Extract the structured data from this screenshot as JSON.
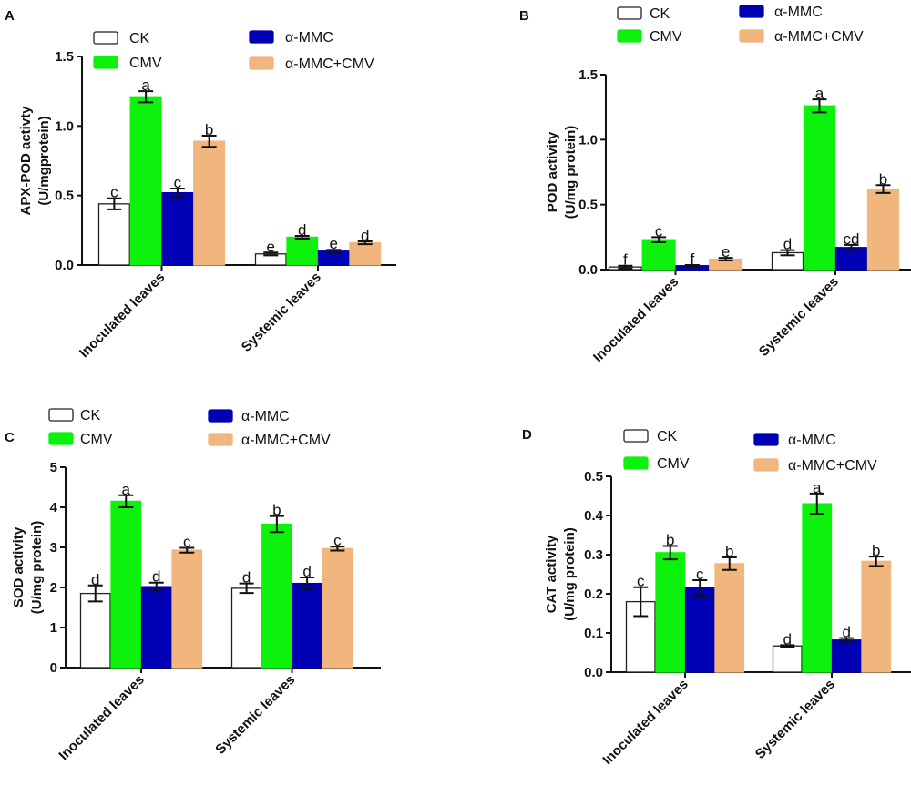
{
  "colors": {
    "CK": "#ffffff",
    "CMV": "#0cf20c",
    "a-MMC": "#0000b4",
    "a-MMC+CMV": "#f1b57e",
    "axis": "#111111"
  },
  "legend": [
    "CK",
    "CMV",
    "α-MMC",
    "α-MMC+CMV"
  ],
  "chart_data": [
    {
      "type": "bar",
      "panel": "A",
      "ylabel": [
        "APX-POD activty",
        "(U/mgprotein)"
      ],
      "ylim": [
        0,
        1.5
      ],
      "yticks": [
        "0.0",
        "0.5",
        "1.0",
        "1.5"
      ],
      "ytick_values": [
        0,
        0.5,
        1.0,
        1.5
      ],
      "categories": [
        "Inoculated leaves",
        "Systemic leaves"
      ],
      "series": [
        {
          "name": "CK",
          "values": [
            0.44,
            0.08
          ],
          "errors": [
            0.04,
            0.01
          ],
          "letters": [
            "c",
            "e"
          ]
        },
        {
          "name": "CMV",
          "values": [
            1.21,
            0.2
          ],
          "errors": [
            0.04,
            0.01
          ],
          "letters": [
            "a",
            "d"
          ]
        },
        {
          "name": "α-MMC",
          "values": [
            0.52,
            0.1
          ],
          "errors": [
            0.03,
            0.01
          ],
          "letters": [
            "c",
            "e"
          ]
        },
        {
          "name": "α-MMC+CMV",
          "values": [
            0.89,
            0.16
          ],
          "errors": [
            0.04,
            0.01
          ],
          "letters": [
            "b",
            "d"
          ]
        }
      ]
    },
    {
      "type": "bar",
      "panel": "B",
      "ylabel": [
        "POD activity",
        "(U/mg protein)"
      ],
      "ylim": [
        0,
        1.5
      ],
      "yticks": [
        "0.0",
        "0.5",
        "1.0",
        "1.5"
      ],
      "ytick_values": [
        0,
        0.5,
        1.0,
        1.5
      ],
      "categories": [
        "Inoculated leaves",
        "Systemic leaves"
      ],
      "series": [
        {
          "name": "CK",
          "values": [
            0.02,
            0.13
          ],
          "errors": [
            0.01,
            0.02
          ],
          "letters": [
            "f",
            "d"
          ]
        },
        {
          "name": "CMV",
          "values": [
            0.23,
            1.26
          ],
          "errors": [
            0.02,
            0.05
          ],
          "letters": [
            "c",
            "a"
          ]
        },
        {
          "name": "α-MMC",
          "values": [
            0.03,
            0.17
          ],
          "errors": [
            0.005,
            0.02
          ],
          "letters": [
            "f",
            "cd"
          ]
        },
        {
          "name": "α-MMC+CMV",
          "values": [
            0.08,
            0.62
          ],
          "errors": [
            0.01,
            0.03
          ],
          "letters": [
            "e",
            "b"
          ]
        }
      ]
    },
    {
      "type": "bar",
      "panel": "C",
      "ylabel": [
        "SOD activity",
        "(U/mg protein)"
      ],
      "ylim": [
        0,
        5
      ],
      "yticks": [
        "0",
        "1",
        "2",
        "3",
        "4",
        "5"
      ],
      "ytick_values": [
        0,
        1,
        2,
        3,
        4,
        5
      ],
      "categories": [
        "Inoculated leaves",
        "Systemic leaves"
      ],
      "series": [
        {
          "name": "CK",
          "values": [
            1.85,
            1.98
          ],
          "errors": [
            0.2,
            0.12
          ],
          "letters": [
            "d",
            "d"
          ]
        },
        {
          "name": "CMV",
          "values": [
            4.15,
            3.58
          ],
          "errors": [
            0.15,
            0.2
          ],
          "letters": [
            "a",
            "b"
          ]
        },
        {
          "name": "α-MMC",
          "values": [
            2.02,
            2.1
          ],
          "errors": [
            0.1,
            0.15
          ],
          "letters": [
            "d",
            "d"
          ]
        },
        {
          "name": "α-MMC+CMV",
          "values": [
            2.93,
            2.97
          ],
          "errors": [
            0.06,
            0.05
          ],
          "letters": [
            "c",
            "c"
          ]
        }
      ]
    },
    {
      "type": "bar",
      "panel": "D",
      "ylabel": [
        "CAT activity",
        "(U/mg protein)"
      ],
      "ylim": [
        0,
        0.5
      ],
      "yticks": [
        "0.0",
        "0.1",
        "0.2",
        "0.3",
        "0.4",
        "0.5"
      ],
      "ytick_values": [
        0,
        0.1,
        0.2,
        0.3,
        0.4,
        0.5
      ],
      "categories": [
        "Inoculated leaves",
        "Systemic leaves"
      ],
      "series": [
        {
          "name": "CK",
          "values": [
            0.18,
            0.067
          ],
          "errors": [
            0.037,
            0.002
          ],
          "letters": [
            "c",
            "d"
          ]
        },
        {
          "name": "CMV",
          "values": [
            0.305,
            0.43
          ],
          "errors": [
            0.017,
            0.026
          ],
          "letters": [
            "b",
            "a"
          ]
        },
        {
          "name": "α-MMC",
          "values": [
            0.215,
            0.082
          ],
          "errors": [
            0.02,
            0.005
          ],
          "letters": [
            "c",
            "d"
          ]
        },
        {
          "name": "α-MMC+CMV",
          "values": [
            0.277,
            0.283
          ],
          "errors": [
            0.016,
            0.012
          ],
          "letters": [
            "b",
            "b"
          ]
        }
      ]
    }
  ]
}
